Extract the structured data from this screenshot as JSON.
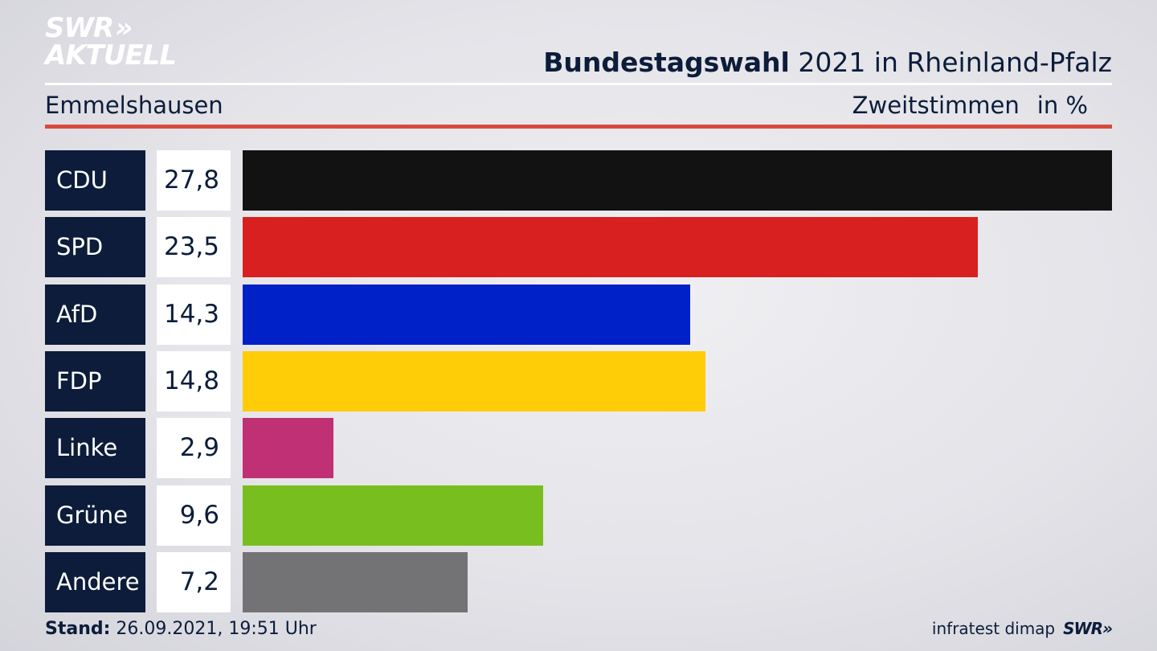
{
  "header": {
    "logo_line1": "SWR",
    "logo_chevrons": "»",
    "logo_line2": "AKTUELL",
    "title_bold": "Bundestagswahl",
    "title_rest": " 2021 in Rheinland-Pfalz",
    "region": "Emmelshausen",
    "vote_type": "Zweitstimmen",
    "unit": "in %"
  },
  "footer": {
    "stand_label": "Stand:",
    "stand_value": " 26.09.2021, 19:51 Uhr",
    "source": "infratest dimap",
    "brand": "SWR»"
  },
  "chart_data": {
    "type": "bar",
    "orientation": "horizontal",
    "categories": [
      "CDU",
      "SPD",
      "AfD",
      "FDP",
      "Linke",
      "Grüne",
      "Andere"
    ],
    "value_labels": [
      "27,8",
      "23,5",
      "14,3",
      "14,8",
      "2,9",
      "9,6",
      "7,2"
    ],
    "values": [
      27.8,
      23.5,
      14.3,
      14.8,
      2.9,
      9.6,
      7.2
    ],
    "colors": [
      "#121212",
      "#d82020",
      "#0020c8",
      "#ffcc08",
      "#c03075",
      "#78be1e",
      "#737376"
    ],
    "xlim": [
      0,
      27.8
    ],
    "grid": false,
    "legend": "none"
  },
  "colors": {
    "navy": "#0c1c3a",
    "accent_red": "#d94a3c"
  }
}
